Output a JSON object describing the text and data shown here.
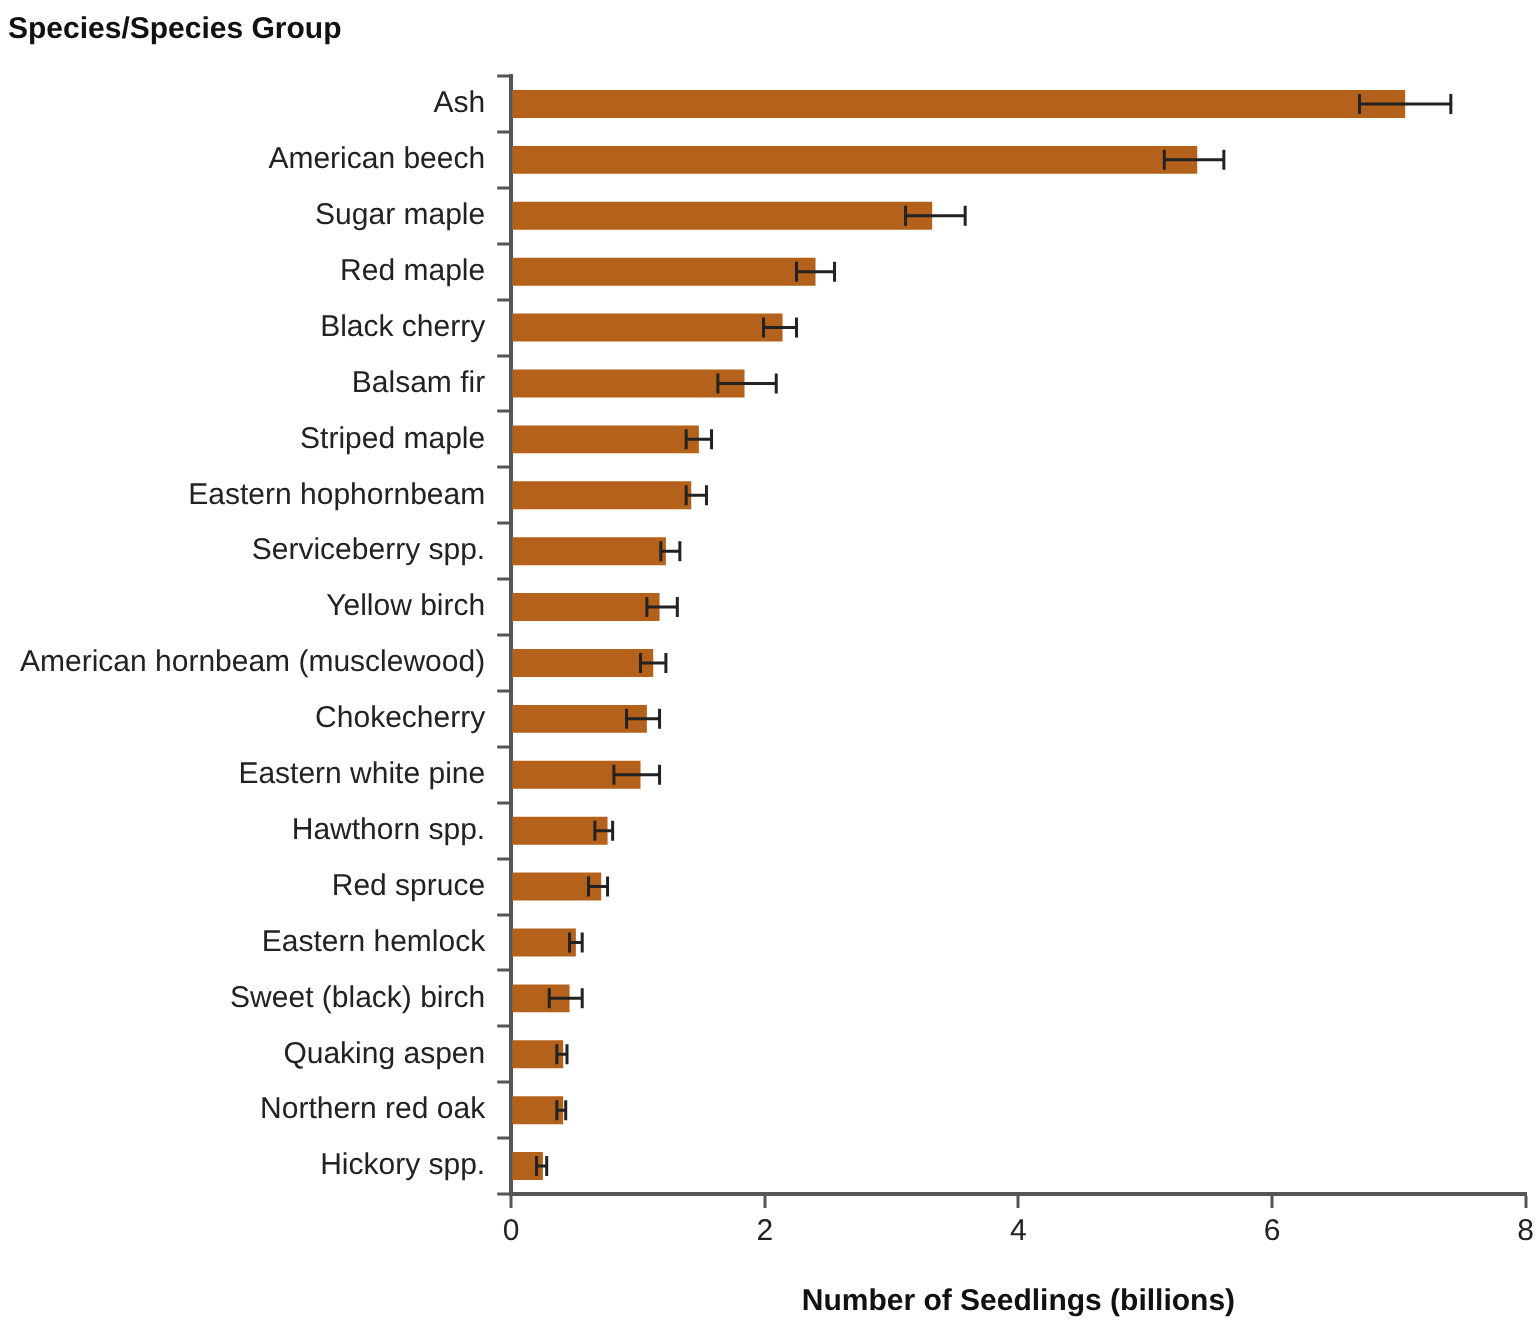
{
  "chart_data": {
    "type": "bar",
    "orientation": "horizontal",
    "title": "Species/Species Group",
    "xlabel": "Number of Seedlings (billions)",
    "categories": [
      "Ash",
      "American beech",
      "Sugar maple",
      "Red maple",
      "Black cherry",
      "Balsam fir",
      "Striped maple",
      "Eastern hophornbeam",
      "Serviceberry spp.",
      "Yellow birch",
      "American hornbeam (musclewood)",
      "Chokecherry",
      "Eastern white pine",
      "Hawthorn spp.",
      "Red spruce",
      "Eastern hemlock",
      "Sweet (black) birch",
      "Quaking aspen",
      "Northern red oak",
      "Hickory spp."
    ],
    "values": [
      7.05,
      5.41,
      3.32,
      2.4,
      2.14,
      1.84,
      1.48,
      1.42,
      1.22,
      1.17,
      1.12,
      1.07,
      1.02,
      0.76,
      0.71,
      0.51,
      0.46,
      0.41,
      0.41,
      0.25
    ],
    "errors": [
      [
        6.69,
        7.41
      ],
      [
        5.15,
        5.62
      ],
      [
        3.11,
        3.58
      ],
      [
        2.25,
        2.55
      ],
      [
        1.99,
        2.25
      ],
      [
        1.63,
        2.09
      ],
      [
        1.38,
        1.58
      ],
      [
        1.38,
        1.54
      ],
      [
        1.18,
        1.33
      ],
      [
        1.07,
        1.31
      ],
      [
        1.02,
        1.22
      ],
      [
        0.91,
        1.17
      ],
      [
        0.81,
        1.17
      ],
      [
        0.66,
        0.8
      ],
      [
        0.61,
        0.76
      ],
      [
        0.46,
        0.56
      ],
      [
        0.3,
        0.56
      ],
      [
        0.36,
        0.44
      ],
      [
        0.36,
        0.43
      ],
      [
        0.2,
        0.28
      ]
    ],
    "color": "#b4621b",
    "xlim": [
      0,
      8
    ],
    "xticks": [
      0,
      2,
      4,
      6,
      8
    ],
    "grid": false,
    "legend": false
  }
}
